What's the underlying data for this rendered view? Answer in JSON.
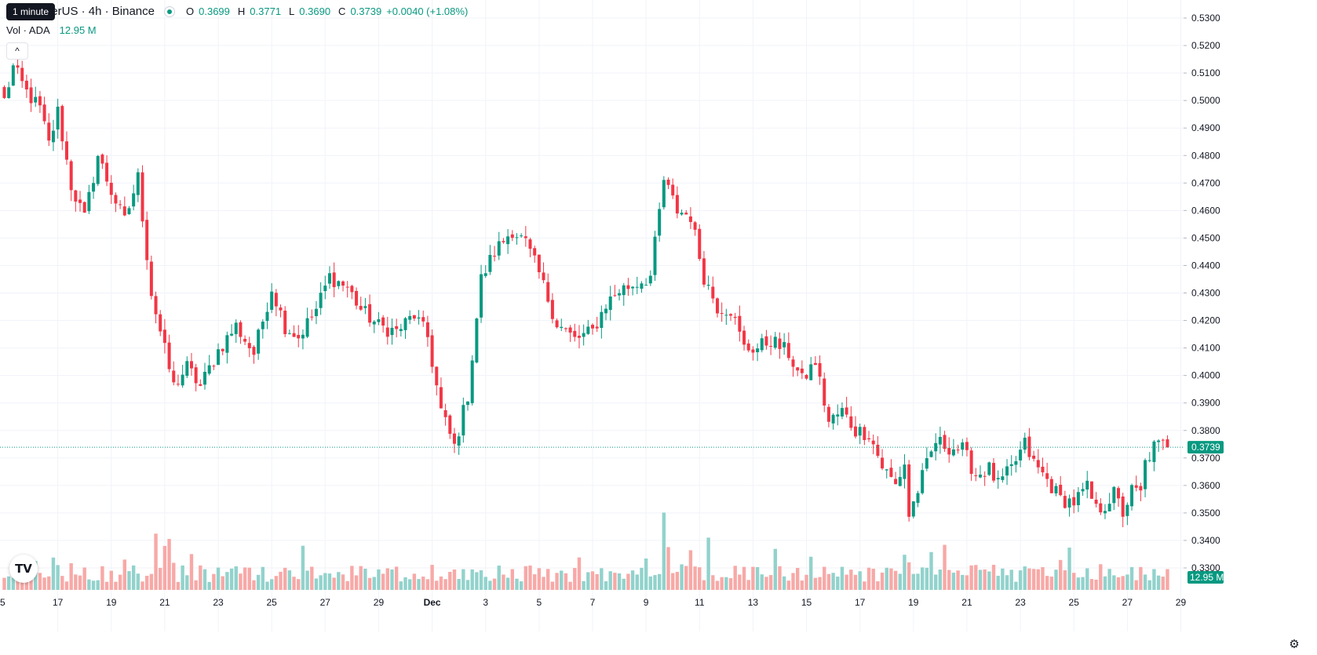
{
  "tooltip": "1 minute",
  "legend": {
    "title": "no / TetherUS · 4h · Binance",
    "open_label": "O",
    "open": "0.3699",
    "high_label": "H",
    "high": "0.3771",
    "low_label": "L",
    "low": "0.3690",
    "close_label": "C",
    "close": "0.3739",
    "change": "+0.0040 (+1.08%)",
    "vol_label": "Vol · ADA",
    "vol_value": "12.95 M"
  },
  "colors": {
    "up": "#089981",
    "down": "#f23645",
    "up_vol": "#92d2cc",
    "down_vol": "#f7a9a7",
    "grid": "#f0f3fa"
  },
  "icons": {
    "collapse": "chevron-up-icon",
    "logo": "tradingview-logo-icon",
    "settings": "gear-icon"
  },
  "chart_data": {
    "type": "candlestick",
    "price_axis": {
      "ticks": [
        0.33,
        0.34,
        0.35,
        0.36,
        0.37,
        0.38,
        0.39,
        0.4,
        0.41,
        0.42,
        0.43,
        0.44,
        0.45,
        0.46,
        0.47,
        0.48,
        0.49,
        0.5,
        0.51,
        0.52,
        0.53
      ],
      "labels": [
        "0.3300",
        "0.3400",
        "0.3500",
        "0.3600",
        "0.3700",
        "0.3800",
        "0.3900",
        "0.4000",
        "0.4100",
        "0.4200",
        "0.4300",
        "0.4400",
        "0.4500",
        "0.4600",
        "0.4700",
        "0.4800",
        "0.4900",
        "0.5000",
        "0.5100",
        "0.5200",
        "0.5300"
      ],
      "range": [
        0.325,
        0.535
      ],
      "last_price": 0.3739,
      "last_price_label": "0.3739",
      "volume_label": "12.95 M"
    },
    "time_axis": {
      "labels": [
        "5",
        "17",
        "19",
        "21",
        "23",
        "25",
        "27",
        "29",
        "Dec",
        "3",
        "5",
        "7",
        "9",
        "11",
        "13",
        "15",
        "17",
        "19",
        "21",
        "23",
        "25",
        "27",
        "29"
      ],
      "bar_index": [
        -6,
        12,
        24,
        36,
        48,
        60,
        72,
        84,
        96,
        108,
        120,
        132,
        144,
        156,
        168,
        180,
        192,
        204,
        216,
        228,
        240,
        252,
        264
      ]
    },
    "anchors": [
      [
        0,
        0.5
      ],
      [
        2,
        0.512
      ],
      [
        5,
        0.503
      ],
      [
        8,
        0.497
      ],
      [
        10,
        0.484
      ],
      [
        12,
        0.496
      ],
      [
        15,
        0.469
      ],
      [
        18,
        0.457
      ],
      [
        21,
        0.48
      ],
      [
        24,
        0.467
      ],
      [
        27,
        0.456
      ],
      [
        30,
        0.472
      ],
      [
        33,
        0.43
      ],
      [
        36,
        0.409
      ],
      [
        38,
        0.396
      ],
      [
        41,
        0.403
      ],
      [
        44,
        0.396
      ],
      [
        48,
        0.409
      ],
      [
        52,
        0.418
      ],
      [
        56,
        0.408
      ],
      [
        60,
        0.432
      ],
      [
        63,
        0.418
      ],
      [
        66,
        0.414
      ],
      [
        70,
        0.424
      ],
      [
        73,
        0.436
      ],
      [
        77,
        0.432
      ],
      [
        80,
        0.424
      ],
      [
        84,
        0.418
      ],
      [
        88,
        0.416
      ],
      [
        92,
        0.422
      ],
      [
        95,
        0.414
      ],
      [
        98,
        0.387
      ],
      [
        101,
        0.374
      ],
      [
        104,
        0.393
      ],
      [
        107,
        0.435
      ],
      [
        110,
        0.445
      ],
      [
        114,
        0.453
      ],
      [
        117,
        0.448
      ],
      [
        120,
        0.437
      ],
      [
        124,
        0.419
      ],
      [
        128,
        0.413
      ],
      [
        132,
        0.416
      ],
      [
        135,
        0.426
      ],
      [
        138,
        0.431
      ],
      [
        141,
        0.433
      ],
      [
        145,
        0.436
      ],
      [
        148,
        0.471
      ],
      [
        151,
        0.46
      ],
      [
        154,
        0.458
      ],
      [
        157,
        0.436
      ],
      [
        160,
        0.425
      ],
      [
        163,
        0.424
      ],
      [
        166,
        0.41
      ],
      [
        169,
        0.41
      ],
      [
        172,
        0.413
      ],
      [
        176,
        0.408
      ],
      [
        179,
        0.398
      ],
      [
        182,
        0.405
      ],
      [
        185,
        0.383
      ],
      [
        188,
        0.387
      ],
      [
        191,
        0.38
      ],
      [
        194,
        0.379
      ],
      [
        197,
        0.367
      ],
      [
        200,
        0.36
      ],
      [
        202,
        0.368
      ],
      [
        203,
        0.349
      ],
      [
        206,
        0.363
      ],
      [
        209,
        0.376
      ],
      [
        212,
        0.374
      ],
      [
        215,
        0.373
      ],
      [
        218,
        0.364
      ],
      [
        221,
        0.366
      ],
      [
        223,
        0.36
      ],
      [
        226,
        0.366
      ],
      [
        229,
        0.375
      ],
      [
        231,
        0.368
      ],
      [
        234,
        0.362
      ],
      [
        237,
        0.355
      ],
      [
        240,
        0.354
      ],
      [
        243,
        0.359
      ],
      [
        245,
        0.351
      ],
      [
        247,
        0.353
      ],
      [
        249,
        0.357
      ],
      [
        251,
        0.35
      ],
      [
        253,
        0.358
      ],
      [
        255,
        0.357
      ],
      [
        256,
        0.368
      ],
      [
        258,
        0.374
      ]
    ],
    "volume_spikes": {
      "36": 4.4,
      "37": 3.2,
      "38": 3.0,
      "34": 2.3,
      "96": 2.6,
      "148": 3.2,
      "149": 2.0,
      "158": 2.3,
      "203": 1.8,
      "202": 1.8,
      "15": 1.8,
      "28": 1.6
    },
    "candle_count": 262
  }
}
